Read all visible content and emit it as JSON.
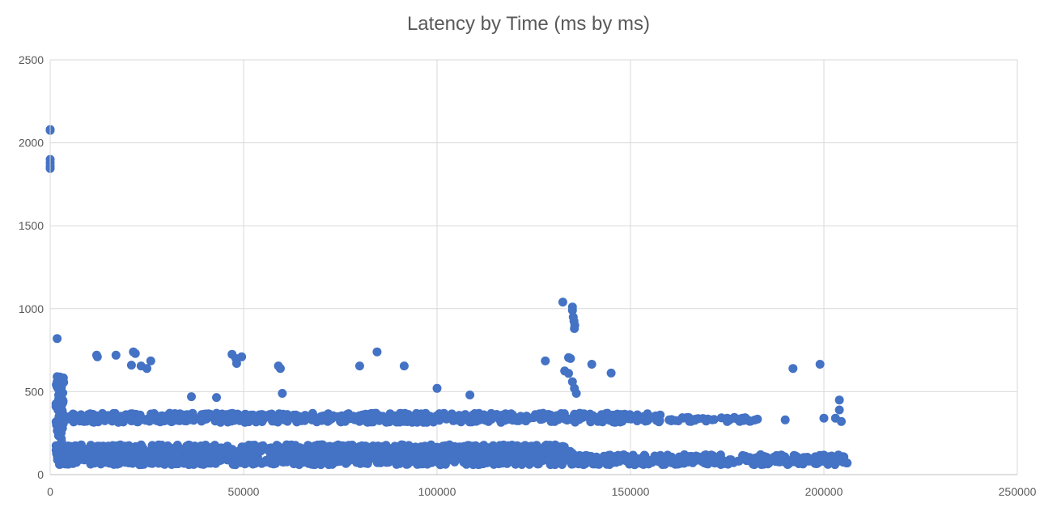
{
  "chart_data": {
    "type": "scatter",
    "title": "Latency by Time (ms by ms)",
    "xlabel": "",
    "ylabel": "",
    "xlim": [
      0,
      250000
    ],
    "ylim": [
      0,
      2500
    ],
    "x_ticks": [
      "0",
      "50000",
      "100000",
      "150000",
      "200000",
      "250000"
    ],
    "y_ticks": [
      "0",
      "500",
      "1000",
      "1500",
      "2000",
      "2500"
    ],
    "grid": true,
    "legend": "none",
    "marker_color": "#4472C4",
    "series": [
      {
        "points": [
          [
            0,
            2080
          ],
          [
            0,
            2075
          ],
          [
            0,
            1900
          ],
          [
            0,
            1880
          ],
          [
            0,
            1860
          ],
          [
            0,
            1845
          ],
          [
            1800,
            820
          ],
          [
            1800,
            590
          ],
          [
            1800,
            560
          ],
          [
            2000,
            520
          ],
          [
            2200,
            480
          ],
          [
            2500,
            440
          ],
          [
            3000,
            420
          ],
          [
            12000,
            720
          ],
          [
            12200,
            710
          ],
          [
            17000,
            720
          ],
          [
            21500,
            740
          ],
          [
            22000,
            730
          ],
          [
            21000,
            660
          ],
          [
            23500,
            655
          ],
          [
            25000,
            640
          ],
          [
            26000,
            685
          ],
          [
            47000,
            725
          ],
          [
            48000,
            700
          ],
          [
            48200,
            670
          ],
          [
            49500,
            710
          ],
          [
            59000,
            655
          ],
          [
            59500,
            640
          ],
          [
            60000,
            490
          ],
          [
            36500,
            470
          ],
          [
            43000,
            465
          ],
          [
            80000,
            655
          ],
          [
            84500,
            740
          ],
          [
            91500,
            655
          ],
          [
            100000,
            520
          ],
          [
            108500,
            480
          ],
          [
            128000,
            685
          ],
          [
            132500,
            1040
          ],
          [
            133000,
            625
          ],
          [
            134000,
            705
          ],
          [
            134500,
            700
          ],
          [
            135000,
            1010
          ],
          [
            135000,
            990
          ],
          [
            135200,
            950
          ],
          [
            135400,
            925
          ],
          [
            135600,
            900
          ],
          [
            135500,
            880
          ],
          [
            135000,
            560
          ],
          [
            135500,
            520
          ],
          [
            136000,
            490
          ],
          [
            134000,
            610
          ],
          [
            140000,
            665
          ],
          [
            145000,
            612
          ],
          [
            192000,
            640
          ],
          [
            199000,
            665
          ],
          [
            204000,
            450
          ],
          [
            204000,
            390
          ],
          [
            204500,
            320
          ],
          [
            203000,
            340
          ],
          [
            5000,
            350
          ],
          [
            10000,
            340
          ],
          [
            15000,
            340
          ],
          [
            20000,
            350
          ],
          [
            30000,
            335
          ],
          [
            40000,
            350
          ],
          [
            50000,
            345
          ],
          [
            60000,
            340
          ],
          [
            70000,
            350
          ],
          [
            80000,
            340
          ],
          [
            90000,
            345
          ],
          [
            100000,
            350
          ],
          [
            110000,
            340
          ],
          [
            120000,
            345
          ],
          [
            130000,
            350
          ],
          [
            140000,
            340
          ],
          [
            150000,
            345
          ],
          [
            155000,
            340
          ],
          [
            160000,
            330
          ],
          [
            170000,
            335
          ],
          [
            175000,
            340
          ],
          [
            180000,
            335
          ],
          [
            190000,
            330
          ],
          [
            200000,
            340
          ],
          [
            5000,
            120
          ],
          [
            10000,
            90
          ],
          [
            15000,
            140
          ],
          [
            20000,
            80
          ],
          [
            30000,
            110
          ],
          [
            40000,
            95
          ],
          [
            50000,
            100
          ],
          [
            60000,
            120
          ],
          [
            70000,
            85
          ],
          [
            80000,
            95
          ],
          [
            90000,
            110
          ],
          [
            100000,
            90
          ],
          [
            110000,
            95
          ],
          [
            120000,
            110
          ],
          [
            130000,
            140
          ],
          [
            140000,
            90
          ],
          [
            150000,
            100
          ],
          [
            160000,
            75
          ],
          [
            170000,
            80
          ],
          [
            180000,
            85
          ],
          [
            190000,
            75
          ],
          [
            200000,
            80
          ],
          [
            205000,
            75
          ],
          [
            206000,
            70
          ]
        ]
      }
    ],
    "dense_bands": [
      {
        "x_range": [
          1500,
          206000
        ],
        "y_range": [
          60,
          120
        ]
      },
      {
        "x_range": [
          1500,
          135000
        ],
        "y_range": [
          120,
          180
        ]
      },
      {
        "x_range": [
          2000,
          158000
        ],
        "y_range": [
          315,
          370
        ]
      },
      {
        "x_range": [
          160000,
          183000
        ],
        "y_range": [
          320,
          345
        ]
      },
      {
        "x_range": [
          1500,
          3500
        ],
        "y_range": [
          60,
          590
        ]
      }
    ]
  }
}
